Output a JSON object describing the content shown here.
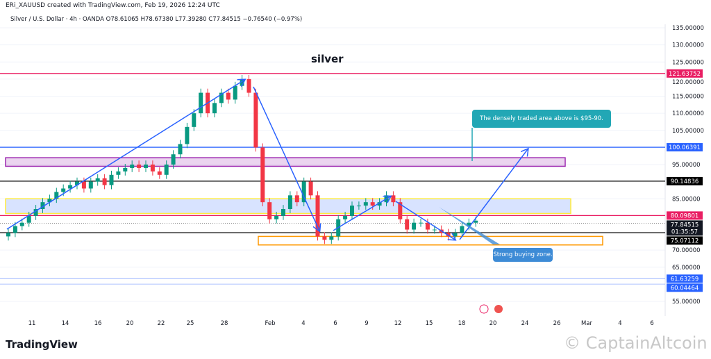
{
  "header": {
    "attribution": "ERi_XAUUSD created with TradingView.com, Feb 19, 2026 12:24 UTC",
    "ohlc": "Silver / U.S. Dollar · 4h · OANDA  O78.61065  H78.67380  L77.39280  C77.84515  −0.76540 (−0.97%)"
  },
  "chart_data": {
    "type": "candlestick",
    "title": "silver",
    "symbol": "Silver / U.S. Dollar",
    "interval": "4h",
    "exchange": "OANDA",
    "ylim": [
      52,
      137
    ],
    "y_ticks": [
      "135.00000",
      "130.00000",
      "125.00000",
      "120.00000",
      "115.00000",
      "110.00000",
      "105.00000",
      "95.00000",
      "85.00000",
      "70.00000",
      "65.00000",
      "55.00000"
    ],
    "y_tick_values": [
      135,
      130,
      125,
      120,
      115,
      110,
      105,
      95,
      85,
      70,
      65,
      55
    ],
    "x_ticks": [
      "11",
      "14",
      "16",
      "20",
      "22",
      "25",
      "28",
      "Feb",
      "4",
      "6",
      "9",
      "12",
      "15",
      "18",
      "20",
      "24",
      "26",
      "Mar",
      "4",
      "6"
    ],
    "closes": [
      75,
      77,
      78,
      80,
      82,
      84,
      85,
      87,
      88,
      89,
      90,
      88,
      90,
      91,
      89,
      92,
      93,
      94,
      95,
      94,
      95,
      93,
      92,
      95,
      98,
      101,
      106,
      110,
      116,
      110,
      113,
      116,
      114,
      118,
      120,
      116,
      100,
      84,
      79,
      80,
      82,
      86,
      84,
      90,
      86,
      74,
      73,
      74,
      79,
      80,
      83,
      83,
      84,
      83,
      84,
      86,
      84,
      79,
      76,
      78,
      78,
      76,
      76,
      75,
      74,
      75,
      77,
      78,
      78.6
    ],
    "up_color": "#089981",
    "down_color": "#f23645",
    "levels": [
      {
        "value": 121.63752,
        "label": "121.63752",
        "color": "#e91e63"
      },
      {
        "value": 100.06391,
        "label": "100.06391",
        "color": "#2962ff"
      },
      {
        "value": 90.14836,
        "label": "90.14836",
        "color": "#000000"
      },
      {
        "value": 80.09801,
        "label": "80.09801",
        "color": "#e91e63"
      },
      {
        "value": 75.07112,
        "label": "75.07112",
        "color": "#000000"
      },
      {
        "value": 61.63259,
        "label": "61.63259",
        "color": "#2962ff"
      },
      {
        "value": 60.04464,
        "label": "60.04464",
        "color": "#2962ff"
      }
    ],
    "last_price": {
      "value": 77.84515,
      "label": "77.84515",
      "countdown": "01:35:57"
    },
    "zones": [
      {
        "from": 94.5,
        "to": 97,
        "color": "#9c27b0"
      },
      {
        "from": 80.7,
        "to": 85,
        "color": "#ffeb3b"
      },
      {
        "from": 71.5,
        "to": 74,
        "color": "#ff9800"
      }
    ]
  },
  "annotations": {
    "callout_top": "The densely traded area above is $95-90.",
    "callout_bottom": "Strong buying zone."
  },
  "footer": {
    "logo": "TradingView",
    "watermark": "© CaptainAltcoin"
  }
}
